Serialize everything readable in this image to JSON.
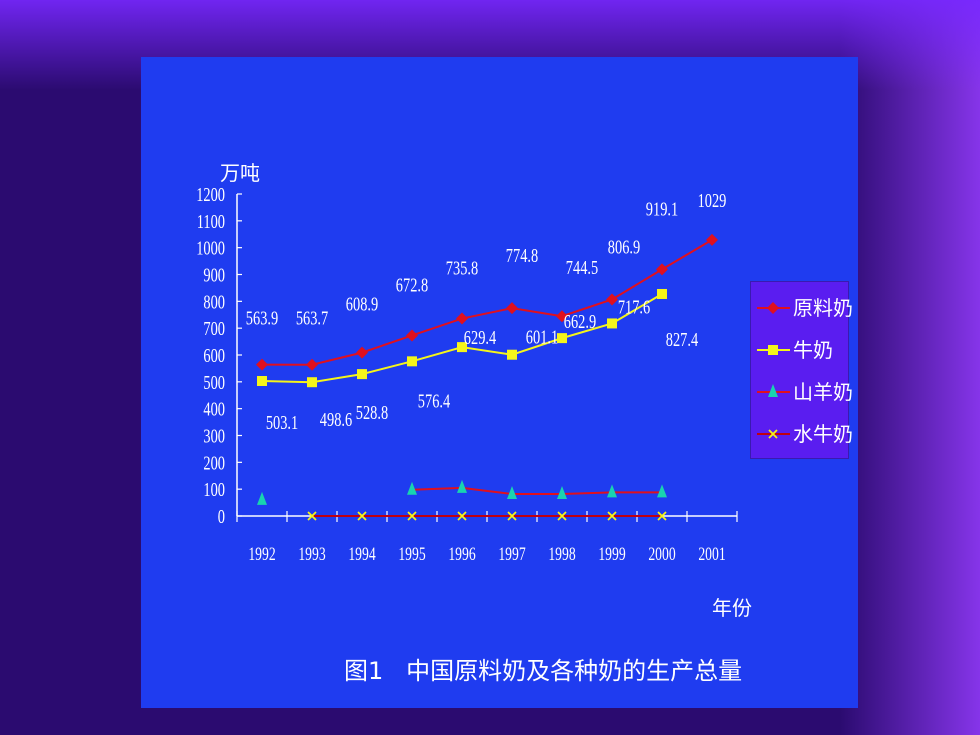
{
  "chart_data": {
    "type": "line",
    "title": "图1   中国原料奶及各种奶的生产总量",
    "ylabel": "万吨",
    "xlabel": "年份",
    "categories": [
      "1992",
      "1993",
      "1994",
      "1995",
      "1996",
      "1997",
      "1998",
      "1999",
      "2000",
      "2001"
    ],
    "ylim": [
      0,
      1200
    ],
    "yticks": [
      0,
      100,
      200,
      300,
      400,
      500,
      600,
      700,
      800,
      900,
      1000,
      1100,
      1200
    ],
    "legend_position": "right",
    "series": [
      {
        "name": "原料奶",
        "color": "#e0101e",
        "marker": "diamond",
        "values": [
          563.9,
          563.7,
          608.9,
          672.8,
          735.8,
          774.8,
          744.5,
          806.9,
          919.1,
          1029
        ],
        "labels": [
          "563.9",
          "563.7",
          "608.9",
          "672.8",
          "735.8",
          "774.8",
          "744.5",
          "806.9",
          "919.1",
          "1029"
        ]
      },
      {
        "name": "牛奶",
        "color": "#f5f51a",
        "marker": "square",
        "values": [
          503.1,
          498.6,
          528.8,
          576.4,
          629.4,
          601.1,
          662.9,
          717.6,
          827.4,
          null
        ],
        "labels": [
          "503.1",
          "498.6",
          "528.8",
          "576.4",
          "629.4",
          "601.1",
          "662.9",
          "717.6",
          "827.4",
          ""
        ]
      },
      {
        "name": "山羊奶",
        "color": "#e0101e",
        "marker": "triangle",
        "marker_color": "#19d3b0",
        "values": [
          60,
          null,
          null,
          98,
          105,
          82,
          82,
          88,
          88,
          null
        ]
      },
      {
        "name": "水牛奶",
        "color": "#c00010",
        "marker": "x",
        "marker_color": "#f5f51a",
        "values": [
          null,
          0,
          0,
          0,
          0,
          0,
          0,
          0,
          0,
          null
        ]
      }
    ]
  }
}
